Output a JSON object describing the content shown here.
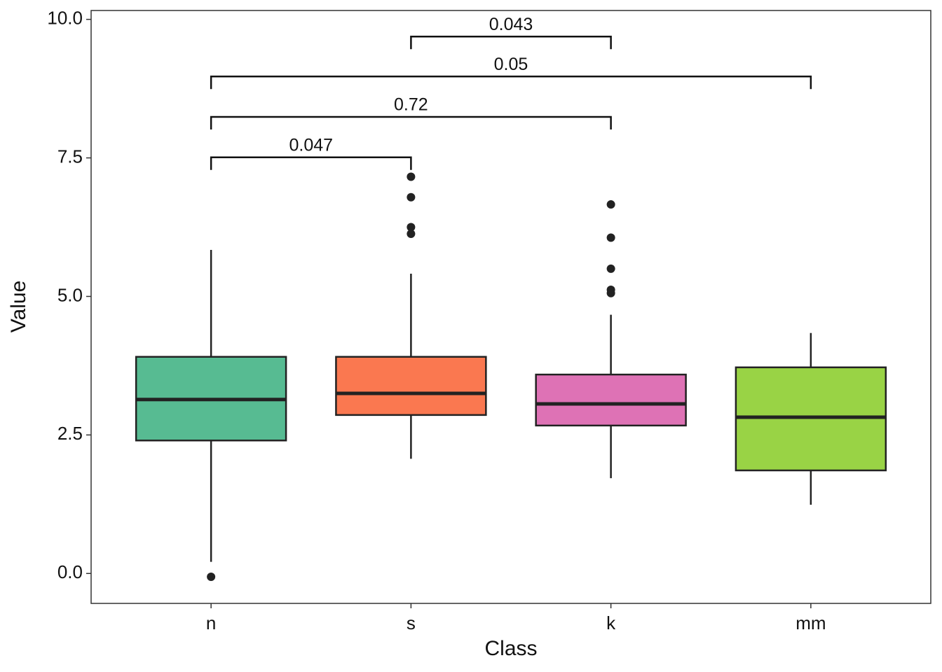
{
  "chart_data": {
    "type": "box",
    "x_label": "Class",
    "y_label": "Value",
    "categories": [
      "n",
      "s",
      "k",
      "mm"
    ],
    "colors": [
      "#57bb92",
      "#fa7850",
      "#de72b5",
      "#99d345"
    ],
    "boxes": [
      {
        "whislo": 0.21,
        "q1": 2.4,
        "med": 3.14,
        "q3": 3.91,
        "whishi": 5.84,
        "outliers": [
          -0.06
        ]
      },
      {
        "whislo": 2.07,
        "q1": 2.86,
        "med": 3.25,
        "q3": 3.91,
        "whishi": 5.41,
        "outliers": [
          7.16,
          6.79,
          6.25,
          6.13
        ]
      },
      {
        "whislo": 1.72,
        "q1": 2.67,
        "med": 3.06,
        "q3": 3.59,
        "whishi": 4.67,
        "outliers": [
          6.66,
          6.06,
          5.5,
          5.12,
          5.06
        ]
      },
      {
        "whislo": 1.24,
        "q1": 1.86,
        "med": 2.82,
        "q3": 3.72,
        "whishi": 4.34,
        "outliers": []
      }
    ],
    "comparisons": [
      {
        "groups": [
          "n",
          "s"
        ],
        "p": 0.047,
        "y": 7.51
      },
      {
        "groups": [
          "n",
          "k"
        ],
        "p": 0.72,
        "y": 8.24
      },
      {
        "groups": [
          "n",
          "mm"
        ],
        "p": 0.05,
        "y": 8.97
      },
      {
        "groups": [
          "s",
          "k"
        ],
        "p": 0.043,
        "y": 9.69
      }
    ],
    "ylim": [
      -0.54,
      10.16
    ],
    "yticks": [
      {
        "value": 0,
        "label": "0.0"
      },
      2.5,
      {
        "value": 5,
        "label": "5.0"
      },
      7.5,
      {
        "value": 10,
        "label": "10.0"
      }
    ],
    "grid": false
  }
}
